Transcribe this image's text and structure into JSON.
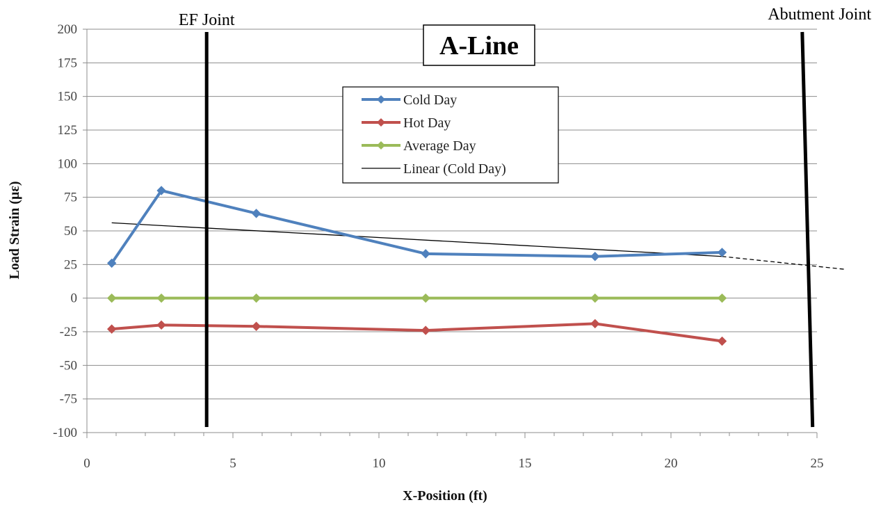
{
  "chart_data": {
    "type": "line",
    "title": "A-Line",
    "xlabel": "X-Position (ft)",
    "ylabel": "Load Strain (µε)",
    "xlim": [
      0,
      25
    ],
    "ylim": [
      -100,
      200
    ],
    "xticks": [
      0,
      5,
      10,
      15,
      20,
      25
    ],
    "yticks": [
      200,
      175,
      150,
      125,
      100,
      75,
      50,
      25,
      0,
      -25,
      -50,
      -75,
      -100
    ],
    "grid": "horizontal",
    "legend_position": "top-center",
    "series": [
      {
        "name": "Cold Day",
        "color": "#4F81BD",
        "marker": "diamond",
        "x": [
          0.85,
          2.55,
          5.8,
          11.6,
          17.4,
          21.75
        ],
        "y": [
          26,
          80,
          63,
          33,
          31,
          34
        ]
      },
      {
        "name": "Hot Day",
        "color": "#C0504D",
        "marker": "diamond",
        "x": [
          0.85,
          2.55,
          5.8,
          11.6,
          17.4,
          21.75
        ],
        "y": [
          -23,
          -20,
          -21,
          -24,
          -19,
          -32
        ]
      },
      {
        "name": "Average Day",
        "color": "#9BBB59",
        "marker": "diamond",
        "x": [
          0.85,
          2.55,
          5.8,
          11.6,
          17.4,
          21.75
        ],
        "y": [
          0,
          0,
          0,
          0,
          0,
          0
        ]
      },
      {
        "name": "Linear (Cold Day)",
        "color": "#000000",
        "marker": "none",
        "x": [
          0.85,
          21.75
        ],
        "y": [
          56,
          31
        ],
        "extension": {
          "x": [
            21.75,
            25
          ],
          "y": [
            31,
            23
          ],
          "style": "dashed"
        }
      }
    ],
    "annotations": [
      {
        "label": "EF Joint",
        "x": 4.1,
        "y_range": [
          -100,
          200
        ]
      },
      {
        "label": "Abutment Joint",
        "x_range": [
          24.85,
          23.9
        ],
        "y_range": [
          -100,
          200
        ]
      }
    ]
  }
}
